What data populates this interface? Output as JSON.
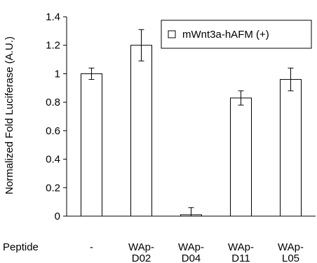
{
  "chart_data": {
    "type": "bar",
    "ylabel": "Normalized Fold Luciferase (A.U.)",
    "x_row_label": "Peptide",
    "categories": [
      {
        "line1": "-",
        "line2": ""
      },
      {
        "line1": "WAp-",
        "line2": "D02"
      },
      {
        "line1": "WAp-",
        "line2": "D04"
      },
      {
        "line1": "WAp-",
        "line2": "D11"
      },
      {
        "line1": "WAp-",
        "line2": "L05"
      }
    ],
    "series": [
      {
        "name": "mWnt3a-hAFM (+)",
        "values": [
          1.0,
          1.2,
          0.01,
          0.83,
          0.96
        ],
        "errors": [
          0.04,
          0.11,
          0.05,
          0.05,
          0.08
        ],
        "fill": "#ffffff",
        "stroke": "#000000"
      }
    ],
    "ylim": [
      0,
      1.4
    ],
    "yticks": [
      "0",
      "0.2",
      "0.4",
      "0.6",
      "0.8",
      "1",
      "1.2",
      "1.4"
    ],
    "grid": false,
    "legend_position": "top-right"
  }
}
